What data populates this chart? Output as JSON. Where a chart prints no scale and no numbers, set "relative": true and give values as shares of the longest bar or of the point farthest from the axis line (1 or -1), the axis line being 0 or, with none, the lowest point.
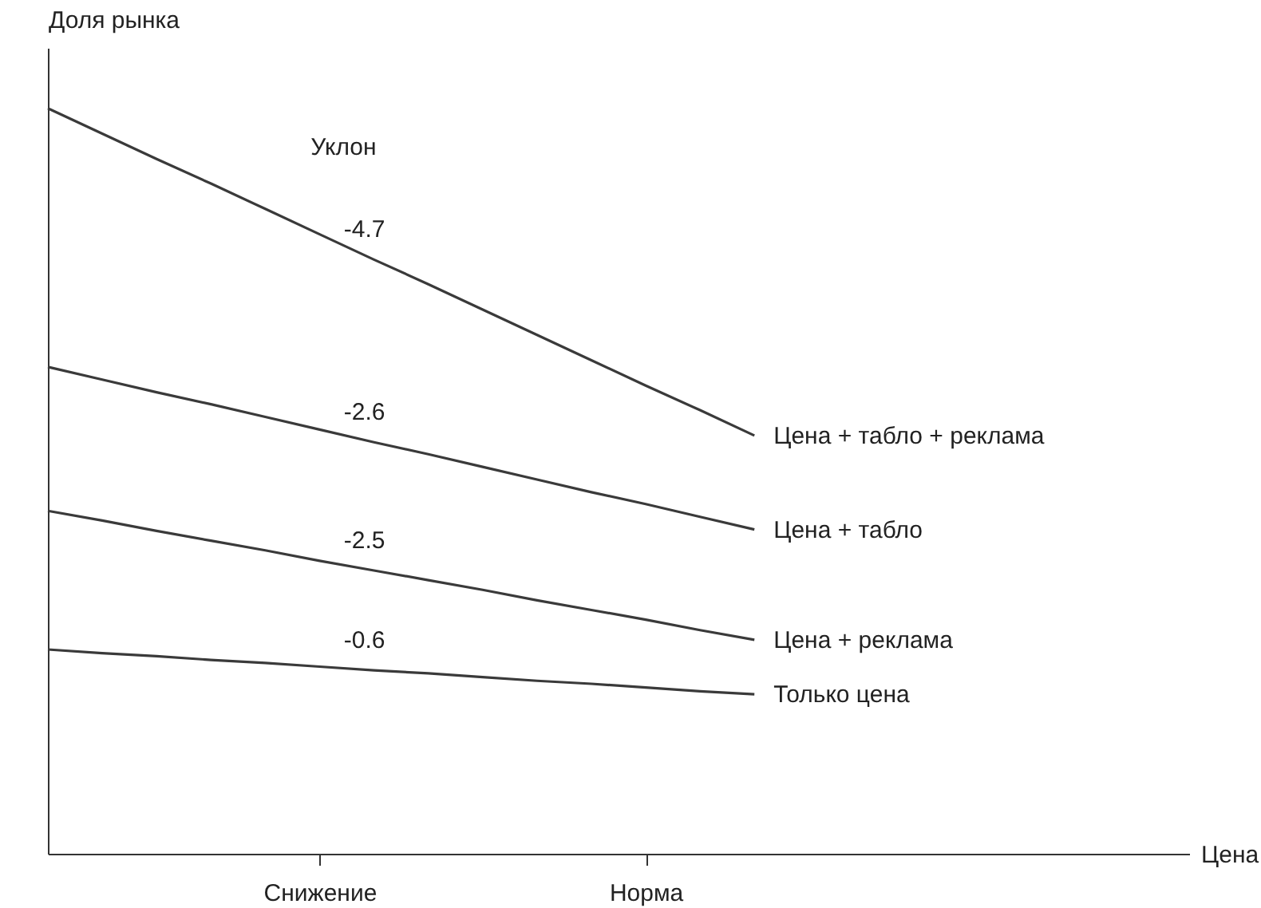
{
  "chart_data": {
    "type": "line",
    "relative": true,
    "xlabel": "Цена",
    "ylabel": "Доля рынка",
    "categories": [
      null,
      null,
      null,
      null,
      null,
      "Снижение",
      null,
      null,
      null,
      null,
      null,
      "Норма",
      null,
      null,
      null,
      null,
      null,
      null,
      null,
      null,
      null,
      null
    ],
    "series": [
      {
        "name": "Цена + табло + реклама",
        "color": "#3a3a3a",
        "values": [
          1,
          0.966,
          0.932,
          0.899,
          0.865,
          0.831,
          0.797,
          0.764,
          0.73,
          0.696,
          0.662,
          0.628,
          0.595,
          0.561,
          null,
          null,
          null,
          null,
          null,
          null,
          null,
          null
        ]
      },
      {
        "name": "Цена + табло",
        "color": "#3a3a3a",
        "values": [
          0.653,
          0.636,
          0.619,
          0.603,
          0.586,
          0.569,
          0.552,
          0.536,
          0.519,
          0.502,
          0.485,
          0.469,
          0.452,
          0.435,
          null,
          null,
          null,
          null,
          null,
          null,
          null,
          null
        ]
      },
      {
        "name": "Цена + реклама",
        "color": "#3a3a3a",
        "values": [
          0.46,
          0.447,
          0.433,
          0.42,
          0.407,
          0.393,
          0.38,
          0.367,
          0.354,
          0.34,
          0.327,
          0.314,
          0.3,
          0.287,
          null,
          null,
          null,
          null,
          null,
          null,
          null,
          null
        ]
      },
      {
        "name": "Только цена",
        "color": "#3a3a3a",
        "values": [
          0.274,
          0.269,
          0.265,
          0.26,
          0.256,
          0.251,
          0.246,
          0.242,
          0.237,
          0.232,
          0.228,
          0.223,
          0.218,
          0.214,
          null,
          null,
          null,
          null,
          null,
          null,
          null,
          null
        ]
      }
    ],
    "annotations": [
      "Уклон",
      "-4.7",
      "-2.6",
      "-2.5",
      "-0.6"
    ],
    "legend": false,
    "grid": false,
    "marker": "none",
    "line_style": "solid"
  }
}
